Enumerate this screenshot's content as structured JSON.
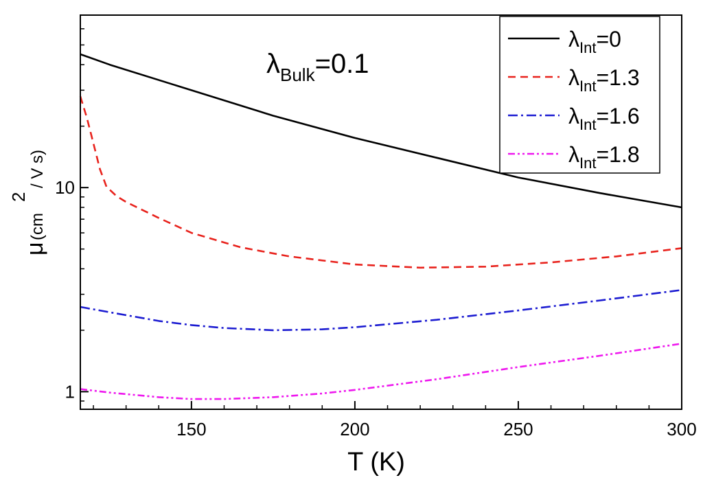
{
  "chart_data": {
    "type": "line",
    "title": "",
    "annotation": {
      "symbol": "λ",
      "sub": "Bulk",
      "rest": "=0.1"
    },
    "xlabel": "T (K)",
    "ylabel": {
      "symbol": "μ",
      "open": "(cm",
      "sup": "2",
      "close": "/ V s)"
    },
    "xlim": [
      116,
      300
    ],
    "ylim": [
      0.82,
      70
    ],
    "yscale": "log",
    "x_ticks": [
      150,
      200,
      250,
      300
    ],
    "y_ticks": [
      {
        "value": 1,
        "label": "1"
      },
      {
        "value": 10,
        "label": "10"
      }
    ],
    "legend_position": "top-right",
    "series": [
      {
        "name": "λInt=0",
        "legend": {
          "symbol": "λ",
          "sub": "Int",
          "rest": "=0"
        },
        "color": "#000000",
        "dash": "",
        "x": [
          116,
          125,
          150,
          175,
          200,
          225,
          250,
          275,
          300
        ],
        "y": [
          45,
          40,
          30,
          22.5,
          17.5,
          14,
          11.2,
          9.4,
          8.0
        ]
      },
      {
        "name": "λInt=1.3",
        "legend": {
          "symbol": "λ",
          "sub": "Int",
          "rest": "=1.3"
        },
        "color": "#e8221c",
        "dash": "11,7",
        "x": [
          116,
          118,
          120,
          122,
          124,
          127,
          130,
          140,
          150,
          165,
          180,
          200,
          220,
          240,
          260,
          280,
          300
        ],
        "y": [
          28,
          22,
          16.5,
          12.3,
          10.1,
          9.1,
          8.5,
          7.1,
          6.0,
          5.1,
          4.6,
          4.2,
          4.05,
          4.1,
          4.3,
          4.6,
          5.05
        ]
      },
      {
        "name": "λInt=1.6",
        "legend": {
          "symbol": "λ",
          "sub": "Int",
          "rest": "=1.6"
        },
        "color": "#1b1bd1",
        "dash": "14,5,3,5",
        "x": [
          116,
          125,
          140,
          150,
          160,
          175,
          190,
          200,
          225,
          250,
          275,
          300
        ],
        "y": [
          2.6,
          2.45,
          2.22,
          2.12,
          2.05,
          2.0,
          2.02,
          2.07,
          2.25,
          2.5,
          2.8,
          3.15
        ]
      },
      {
        "name": "λInt=1.8",
        "legend": {
          "symbol": "λ",
          "sub": "Int",
          "rest": "=1.8"
        },
        "color": "#ee18ee",
        "dash": "10,4,3,4,3,4",
        "x": [
          116,
          125,
          140,
          150,
          160,
          175,
          190,
          200,
          225,
          250,
          275,
          300
        ],
        "y": [
          1.03,
          0.99,
          0.94,
          0.92,
          0.92,
          0.94,
          0.98,
          1.02,
          1.15,
          1.32,
          1.5,
          1.72
        ]
      }
    ]
  }
}
